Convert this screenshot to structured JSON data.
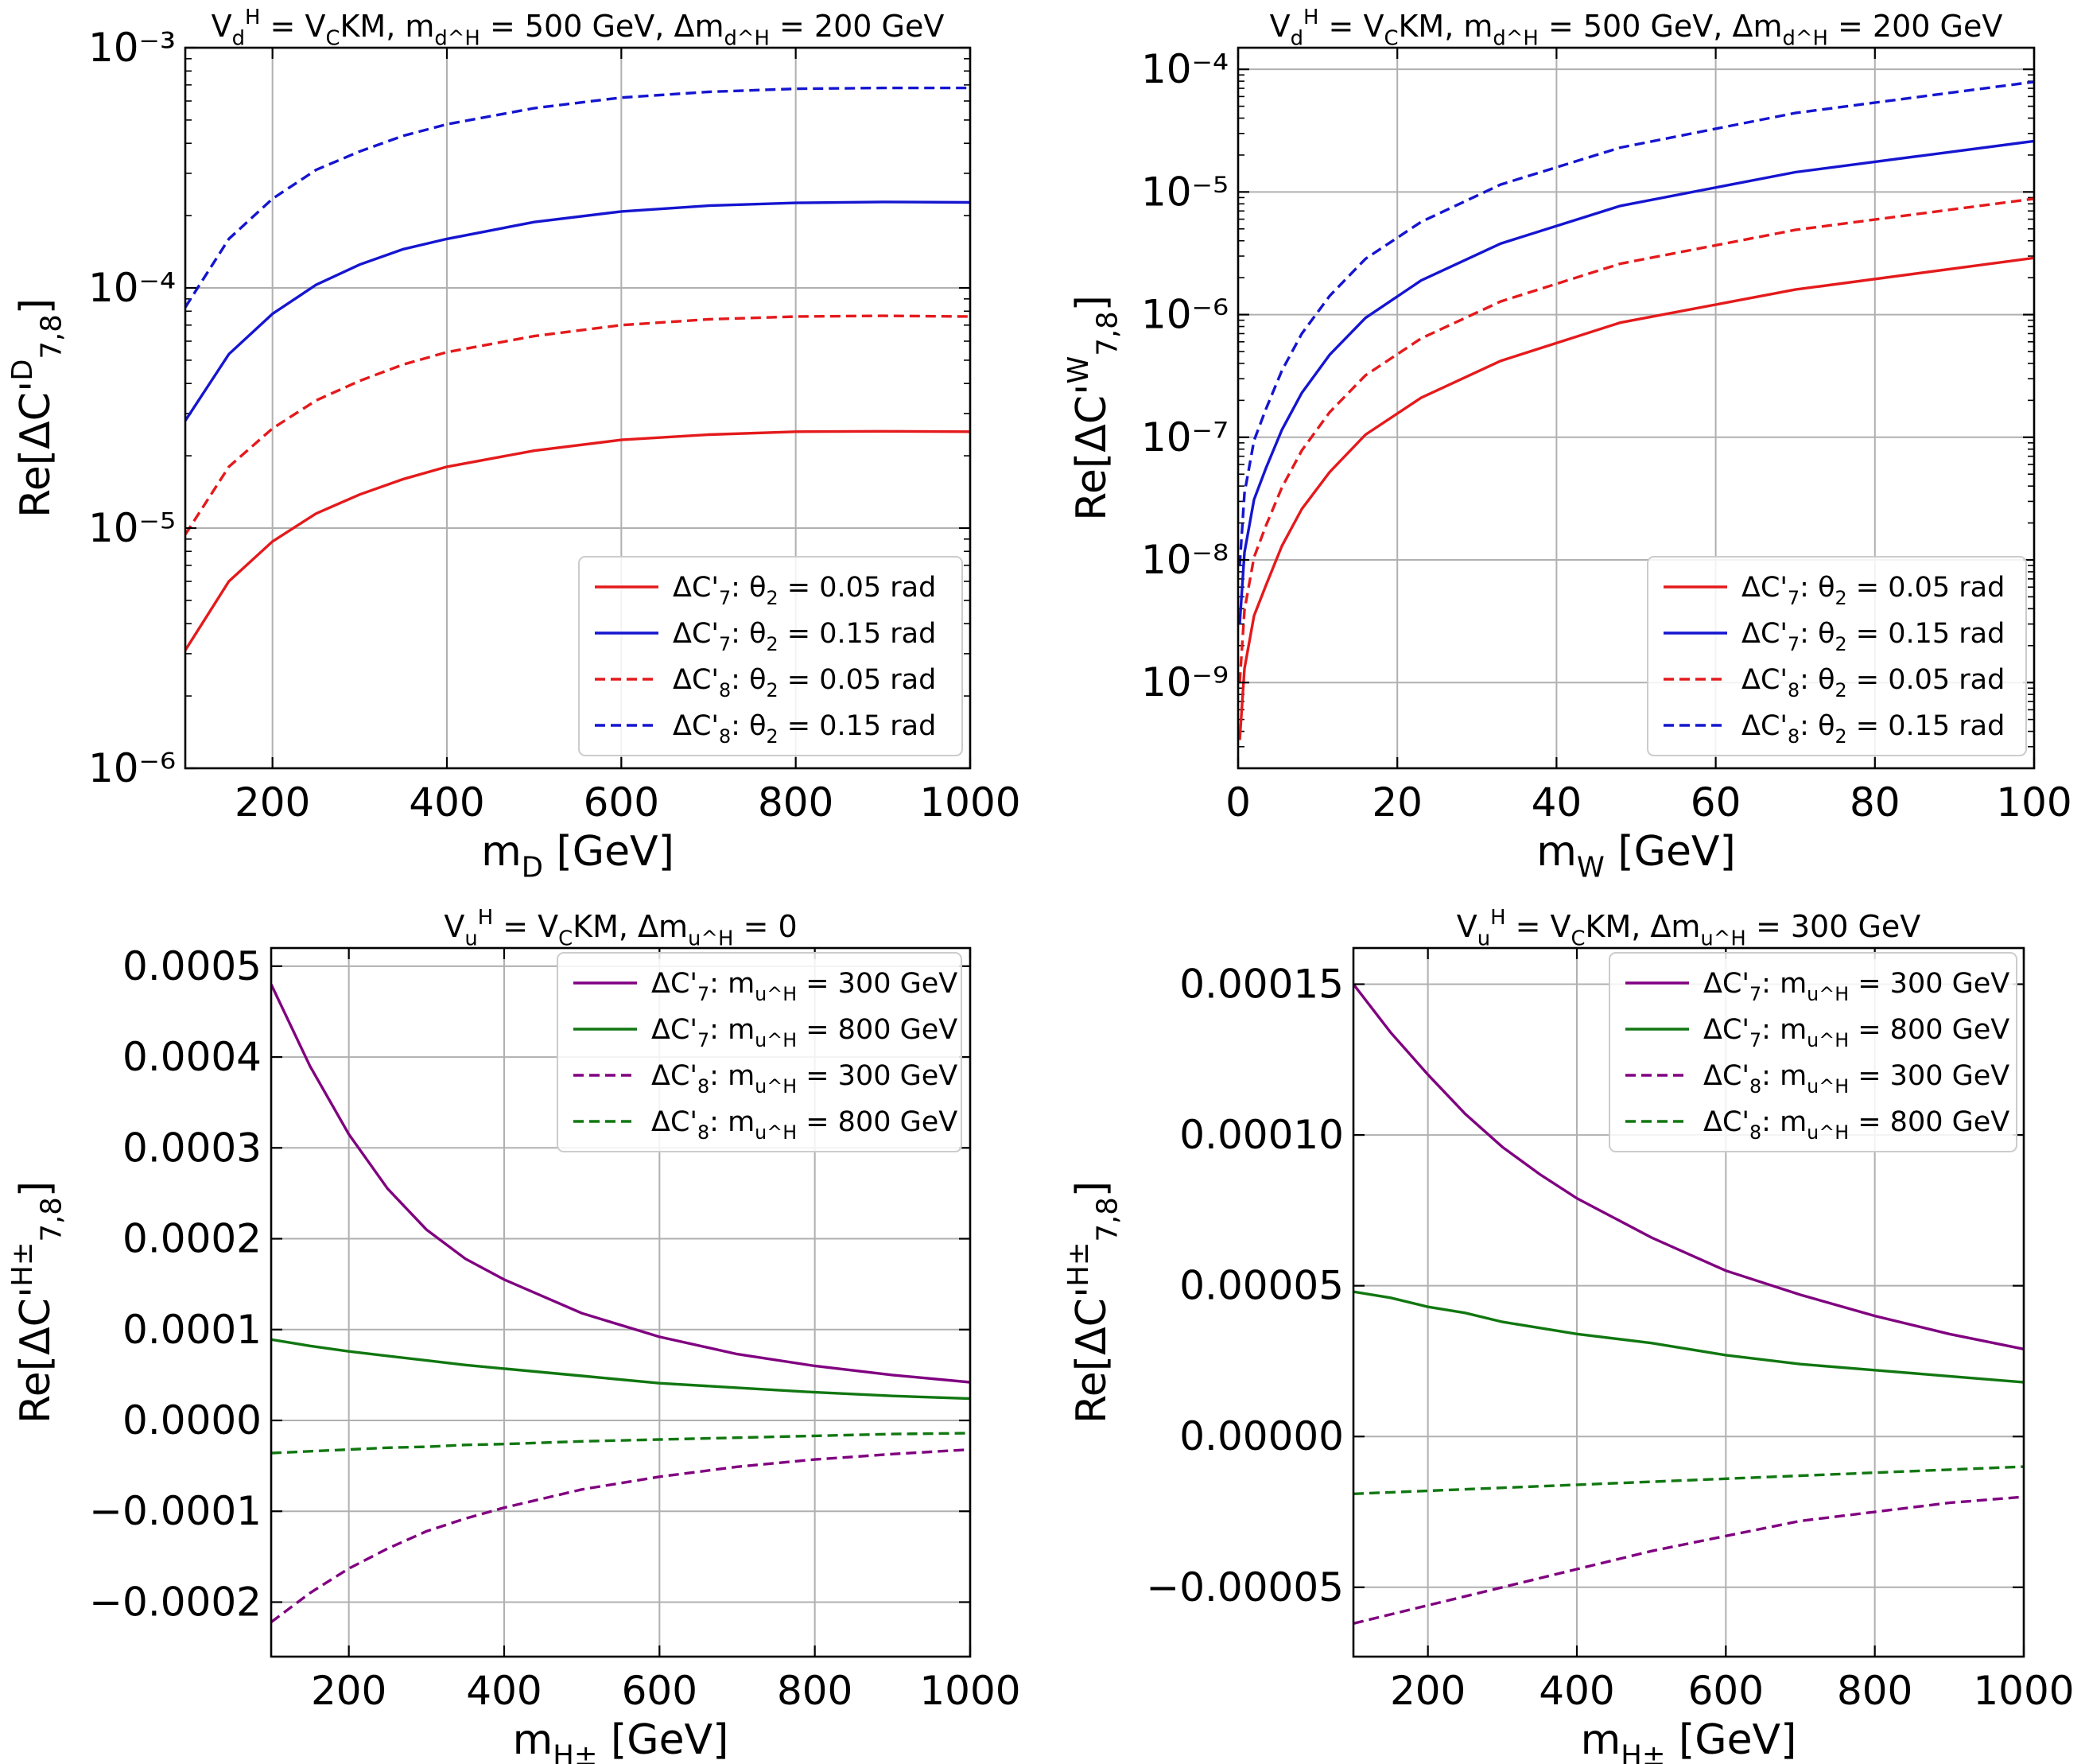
{
  "chart_data": [
    {
      "type": "line",
      "title": "V_d^H = V_CKM, m_{d^H} = 500 GeV, Δm_{d^H} = 200 GeV",
      "xlabel": "m_D [GeV]",
      "ylabel": "Re[ΔC'^D_{7,8}]",
      "yscale": "log",
      "xlim": [
        100,
        1000
      ],
      "ylim": [
        1e-06,
        0.001
      ],
      "xticks": [
        "200",
        "400",
        "600",
        "800",
        "1000"
      ],
      "yticks": [
        {
          "v": 1e-06,
          "label": "10⁻⁶"
        },
        {
          "v": 1e-05,
          "label": "10⁻⁵"
        },
        {
          "v": 0.0001,
          "label": "10⁻⁴"
        },
        {
          "v": 0.001,
          "label": "10⁻³"
        }
      ],
      "grid": true,
      "legend_position": "lower-right",
      "x": [
        100,
        150,
        200,
        250,
        300,
        350,
        400,
        500,
        600,
        700,
        800,
        900,
        1000
      ],
      "series": [
        {
          "name": "ΔC'_7: θ_2 = 0.05 rad",
          "color": "#e41a1c",
          "dash": "solid",
          "values": [
            3.1e-06,
            6e-06,
            8.8e-06,
            1.15e-05,
            1.38e-05,
            1.6e-05,
            1.8e-05,
            2.1e-05,
            2.33e-05,
            2.45e-05,
            2.52e-05,
            2.53e-05,
            2.52e-05
          ]
        },
        {
          "name": "ΔC'_7: θ_2 = 0.15 rad",
          "color": "#1515d0",
          "dash": "solid",
          "values": [
            2.8e-05,
            5.3e-05,
            7.8e-05,
            0.000103,
            0.000125,
            0.000145,
            0.00016,
            0.000188,
            0.000208,
            0.00022,
            0.000226,
            0.000228,
            0.000227
          ]
        },
        {
          "name": "ΔC'_8: θ_2 = 0.05 rad",
          "color": "#e41a1c",
          "dash": "dashed",
          "values": [
            9.4e-06,
            1.8e-05,
            2.6e-05,
            3.4e-05,
            4.1e-05,
            4.8e-05,
            5.4e-05,
            6.3e-05,
            7e-05,
            7.4e-05,
            7.6e-05,
            7.65e-05,
            7.6e-05
          ]
        },
        {
          "name": "ΔC'_8: θ_2 = 0.15 rad",
          "color": "#1515d0",
          "dash": "dashed",
          "values": [
            8.3e-05,
            0.00016,
            0.000235,
            0.00031,
            0.00037,
            0.00043,
            0.00048,
            0.00056,
            0.00062,
            0.000655,
            0.000675,
            0.00068,
            0.00068
          ]
        }
      ]
    },
    {
      "type": "line",
      "title": "V_d^H = V_CKM, m_{d^H} = 500 GeV, Δm_{d^H} = 200 GeV",
      "xlabel": "m_W [GeV]",
      "ylabel": "Re[ΔC'^W_{7,8}]",
      "yscale": "log",
      "xlim": [
        0,
        100
      ],
      "ylim": [
        2e-10,
        0.00015
      ],
      "xticks": [
        "0",
        "20",
        "40",
        "60",
        "80",
        "100"
      ],
      "yticks": [
        {
          "v": 1e-09,
          "label": "10⁻⁹"
        },
        {
          "v": 1e-08,
          "label": "10⁻⁸"
        },
        {
          "v": 1e-07,
          "label": "10⁻⁷"
        },
        {
          "v": 1e-06,
          "label": "10⁻⁶"
        },
        {
          "v": 1e-05,
          "label": "10⁻⁵"
        },
        {
          "v": 0.0001,
          "label": "10⁻⁴"
        }
      ],
      "grid": true,
      "legend_position": "lower-right",
      "x": [
        0.2,
        0.8,
        2,
        3.5,
        5.5,
        8,
        11.5,
        16,
        23,
        33,
        48,
        70,
        100
      ],
      "series": [
        {
          "name": "ΔC'_7: θ_2 = 0.05 rad",
          "color": "#e41a1c",
          "dash": "solid",
          "values": [
            3.4e-10,
            1.3e-09,
            3.5e-09,
            6.2e-09,
            1.3e-08,
            2.6e-08,
            5.2e-08,
            1.05e-07,
            2.1e-07,
            4.2e-07,
            8.6e-07,
            1.6e-06,
            2.9e-06
          ]
        },
        {
          "name": "ΔC'_7: θ_2 = 0.15 rad",
          "color": "#1515d0",
          "dash": "solid",
          "values": [
            3e-09,
            1.15e-08,
            3.1e-08,
            5.6e-08,
            1.15e-07,
            2.3e-07,
            4.7e-07,
            9.4e-07,
            1.9e-06,
            3.8e-06,
            7.7e-06,
            1.45e-05,
            2.6e-05
          ]
        },
        {
          "name": "ΔC'_8: θ_2 = 0.05 rad",
          "color": "#e41a1c",
          "dash": "dashed",
          "values": [
            1e-09,
            3.9e-09,
            1.05e-08,
            1.9e-08,
            3.9e-08,
            7.8e-08,
            1.6e-07,
            3.2e-07,
            6.4e-07,
            1.28e-06,
            2.6e-06,
            4.9e-06,
            8.8e-06
          ]
        },
        {
          "name": "ΔC'_8: θ_2 = 0.15 rad",
          "color": "#1515d0",
          "dash": "dashed",
          "values": [
            9e-09,
            3.5e-08,
            9.4e-08,
            1.7e-07,
            3.5e-07,
            7e-07,
            1.42e-06,
            2.85e-06,
            5.7e-06,
            1.15e-05,
            2.3e-05,
            4.4e-05,
            7.9e-05
          ]
        }
      ]
    },
    {
      "type": "line",
      "title": "V_u^H = V_CKM, Δm_{u^H} = 0",
      "xlabel": "m_{H±} [GeV]",
      "ylabel": "Re[ΔC'^{H±}_{7,8}]",
      "yscale": "linear",
      "xlim": [
        100,
        1000
      ],
      "ylim": [
        -0.00026,
        0.00052
      ],
      "xticks": [
        "200",
        "400",
        "600",
        "800",
        "1000"
      ],
      "yticks": [
        {
          "v": -0.0002,
          "label": "−0.0002"
        },
        {
          "v": -0.0001,
          "label": "−0.0001"
        },
        {
          "v": 0,
          "label": "0.0000"
        },
        {
          "v": 0.0001,
          "label": "0.0001"
        },
        {
          "v": 0.0002,
          "label": "0.0002"
        },
        {
          "v": 0.0003,
          "label": "0.0003"
        },
        {
          "v": 0.0004,
          "label": "0.0004"
        },
        {
          "v": 0.0005,
          "label": "0.0005"
        }
      ],
      "grid": true,
      "legend_position": "top-right",
      "x": [
        100,
        150,
        200,
        250,
        300,
        350,
        400,
        500,
        600,
        700,
        800,
        900,
        1000
      ],
      "series": [
        {
          "name": "ΔC'_7: m_{u^H} = 300 GeV",
          "color": "#800080",
          "dash": "solid",
          "values": [
            0.00048,
            0.00039,
            0.000315,
            0.000255,
            0.00021,
            0.000178,
            0.000155,
            0.000118,
            9.2e-05,
            7.3e-05,
            6e-05,
            5e-05,
            4.2e-05
          ]
        },
        {
          "name": "ΔC'_7: m_{u^H} = 800 GeV",
          "color": "#117711",
          "dash": "solid",
          "values": [
            8.9e-05,
            8.2e-05,
            7.6e-05,
            7.1e-05,
            6.6e-05,
            6.1e-05,
            5.7e-05,
            4.9e-05,
            4.1e-05,
            3.6e-05,
            3.1e-05,
            2.7e-05,
            2.4e-05
          ]
        },
        {
          "name": "ΔC'_8: m_{u^H} = 300 GeV",
          "color": "#800080",
          "dash": "dashed",
          "values": [
            -0.000222,
            -0.00019,
            -0.000163,
            -0.000141,
            -0.000122,
            -0.000108,
            -9.6e-05,
            -7.6e-05,
            -6.2e-05,
            -5.1e-05,
            -4.3e-05,
            -3.7e-05,
            -3.2e-05
          ]
        },
        {
          "name": "ΔC'_8: m_{u^H} = 800 GeV",
          "color": "#117711",
          "dash": "dashed",
          "values": [
            -3.6e-05,
            -3.4e-05,
            -3.2e-05,
            -3e-05,
            -2.9e-05,
            -2.7e-05,
            -2.6e-05,
            -2.3e-05,
            -2.1e-05,
            -1.9e-05,
            -1.7e-05,
            -1.5e-05,
            -1.4e-05
          ]
        }
      ]
    },
    {
      "type": "line",
      "title": "V_u^H = V_CKM, Δm_{u^H} = 300 GeV",
      "xlabel": "m_{H±} [GeV]",
      "ylabel": "Re[ΔC'^{H±}_{7,8}]",
      "yscale": "linear",
      "xlim": [
        100,
        1000
      ],
      "ylim": [
        -7.3e-05,
        0.000162
      ],
      "xticks": [
        "200",
        "400",
        "600",
        "800",
        "1000"
      ],
      "yticks": [
        {
          "v": -5e-05,
          "label": "−0.00005"
        },
        {
          "v": 0,
          "label": "0.00000"
        },
        {
          "v": 5e-05,
          "label": "0.00005"
        },
        {
          "v": 0.0001,
          "label": "0.00010"
        },
        {
          "v": 0.00015,
          "label": "0.00015"
        }
      ],
      "grid": true,
      "legend_position": "top-right",
      "x": [
        100,
        150,
        200,
        250,
        300,
        350,
        400,
        500,
        600,
        700,
        800,
        900,
        1000
      ],
      "series": [
        {
          "name": "ΔC'_7: m_{u^H} = 300 GeV",
          "color": "#800080",
          "dash": "solid",
          "values": [
            0.00015,
            0.000134,
            0.00012,
            0.000107,
            9.6e-05,
            8.7e-05,
            7.9e-05,
            6.6e-05,
            5.5e-05,
            4.7e-05,
            4e-05,
            3.4e-05,
            2.9e-05
          ]
        },
        {
          "name": "ΔC'_7: m_{u^H} = 800 GeV",
          "color": "#117711",
          "dash": "solid",
          "values": [
            4.8e-05,
            4.6e-05,
            4.3e-05,
            4.1e-05,
            3.8e-05,
            3.6e-05,
            3.4e-05,
            3.1e-05,
            2.7e-05,
            2.4e-05,
            2.2e-05,
            2e-05,
            1.8e-05
          ]
        },
        {
          "name": "ΔC'_8: m_{u^H} = 300 GeV",
          "color": "#800080",
          "dash": "dashed",
          "values": [
            -6.2e-05,
            -5.9e-05,
            -5.6e-05,
            -5.3e-05,
            -5e-05,
            -4.7e-05,
            -4.4e-05,
            -3.8e-05,
            -3.3e-05,
            -2.8e-05,
            -2.5e-05,
            -2.2e-05,
            -2e-05
          ]
        },
        {
          "name": "ΔC'_8: m_{u^H} = 800 GeV",
          "color": "#117711",
          "dash": "dashed",
          "values": [
            -1.9e-05,
            -1.85e-05,
            -1.8e-05,
            -1.75e-05,
            -1.7e-05,
            -1.65e-05,
            -1.6e-05,
            -1.5e-05,
            -1.4e-05,
            -1.3e-05,
            -1.2e-05,
            -1.1e-05,
            -1e-05
          ]
        }
      ]
    }
  ]
}
